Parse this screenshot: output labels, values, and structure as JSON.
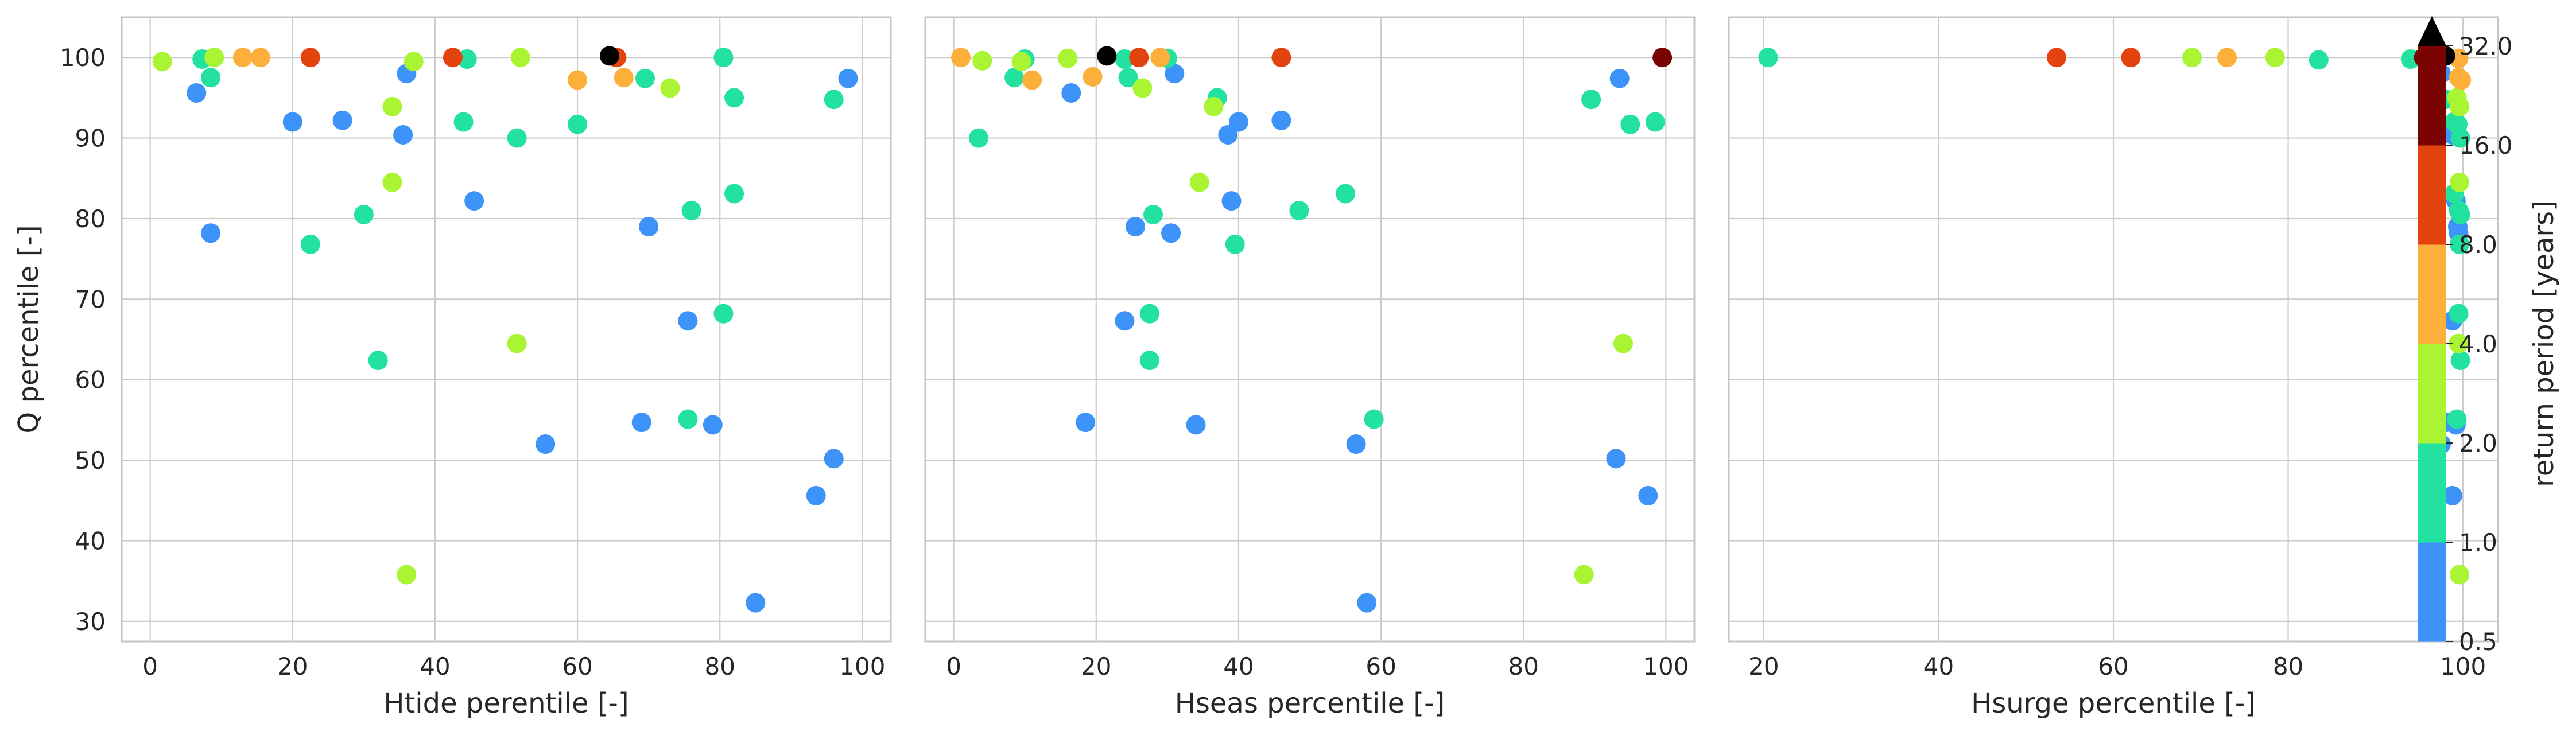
{
  "chart_data": [
    {
      "type": "scatter",
      "xlabel": "Htide perentile [-]",
      "ylabel": "Q percentile [-]",
      "xlim": [
        -4,
        104
      ],
      "ylim": [
        27.5,
        105
      ],
      "xticks": [
        0,
        20,
        40,
        60,
        80,
        100
      ],
      "yticks": [
        30,
        40,
        50,
        60,
        70,
        80,
        90,
        100
      ],
      "grid": true,
      "points": [
        {
          "x": 1.7,
          "y": 99.5,
          "rp": 2.5
        },
        {
          "x": 7.3,
          "y": 99.8,
          "rp": 1.5
        },
        {
          "x": 9.0,
          "y": 100.0,
          "rp": 2.5
        },
        {
          "x": 13.0,
          "y": 100.0,
          "rp": 5.0
        },
        {
          "x": 15.5,
          "y": 100.0,
          "rp": 5.0
        },
        {
          "x": 22.5,
          "y": 100.0,
          "rp": 12.0
        },
        {
          "x": 42.5,
          "y": 100.0,
          "rp": 12.0
        },
        {
          "x": 44.5,
          "y": 99.8,
          "rp": 1.5
        },
        {
          "x": 52.0,
          "y": 100.0,
          "rp": 2.5
        },
        {
          "x": 64.5,
          "y": 100.2,
          "rp": 40.0
        },
        {
          "x": 65.5,
          "y": 100.0,
          "rp": 12.0
        },
        {
          "x": 80.5,
          "y": 100.0,
          "rp": 1.5
        },
        {
          "x": 37.0,
          "y": 99.5,
          "rp": 2.5
        },
        {
          "x": 6.5,
          "y": 95.6,
          "rp": 0.8
        },
        {
          "x": 8.5,
          "y": 97.5,
          "rp": 1.5
        },
        {
          "x": 36.0,
          "y": 98.0,
          "rp": 0.8
        },
        {
          "x": 60.0,
          "y": 97.2,
          "rp": 5.0
        },
        {
          "x": 66.5,
          "y": 97.5,
          "rp": 5.0
        },
        {
          "x": 69.5,
          "y": 97.4,
          "rp": 1.5
        },
        {
          "x": 73.0,
          "y": 96.2,
          "rp": 2.5
        },
        {
          "x": 98.0,
          "y": 97.4,
          "rp": 0.8
        },
        {
          "x": 96.0,
          "y": 94.8,
          "rp": 1.5
        },
        {
          "x": 82.0,
          "y": 95.0,
          "rp": 1.5
        },
        {
          "x": 34.0,
          "y": 93.9,
          "rp": 2.5
        },
        {
          "x": 20.0,
          "y": 92.0,
          "rp": 0.8
        },
        {
          "x": 27.0,
          "y": 92.2,
          "rp": 0.8
        },
        {
          "x": 44.0,
          "y": 92.0,
          "rp": 1.5
        },
        {
          "x": 60.0,
          "y": 91.7,
          "rp": 1.5
        },
        {
          "x": 35.5,
          "y": 90.4,
          "rp": 0.8
        },
        {
          "x": 51.5,
          "y": 90.0,
          "rp": 1.5
        },
        {
          "x": 34.0,
          "y": 84.5,
          "rp": 2.5
        },
        {
          "x": 45.5,
          "y": 82.2,
          "rp": 0.8
        },
        {
          "x": 82.0,
          "y": 83.1,
          "rp": 1.5
        },
        {
          "x": 76.0,
          "y": 81.0,
          "rp": 1.5
        },
        {
          "x": 30.0,
          "y": 80.5,
          "rp": 1.5
        },
        {
          "x": 70.0,
          "y": 79.0,
          "rp": 0.8
        },
        {
          "x": 8.5,
          "y": 78.2,
          "rp": 0.8
        },
        {
          "x": 22.5,
          "y": 76.8,
          "rp": 1.5
        },
        {
          "x": 80.5,
          "y": 68.2,
          "rp": 1.5
        },
        {
          "x": 75.5,
          "y": 67.3,
          "rp": 0.8
        },
        {
          "x": 51.5,
          "y": 64.5,
          "rp": 2.5
        },
        {
          "x": 32.0,
          "y": 62.4,
          "rp": 1.5
        },
        {
          "x": 75.5,
          "y": 55.1,
          "rp": 1.5
        },
        {
          "x": 69.0,
          "y": 54.7,
          "rp": 0.8
        },
        {
          "x": 79.0,
          "y": 54.4,
          "rp": 0.8
        },
        {
          "x": 55.5,
          "y": 52.0,
          "rp": 0.8
        },
        {
          "x": 96.0,
          "y": 50.2,
          "rp": 0.8
        },
        {
          "x": 93.5,
          "y": 45.6,
          "rp": 0.8
        },
        {
          "x": 36.0,
          "y": 35.8,
          "rp": 2.5
        },
        {
          "x": 85.0,
          "y": 32.3,
          "rp": 0.8
        }
      ]
    },
    {
      "type": "scatter",
      "xlabel": "Hseas percentile [-]",
      "ylabel": "",
      "xlim": [
        -4,
        104
      ],
      "ylim": [
        27.5,
        105
      ],
      "xticks": [
        0,
        20,
        40,
        60,
        80,
        100
      ],
      "yticks": [
        30,
        40,
        50,
        60,
        70,
        80,
        90,
        100
      ],
      "grid": true,
      "points": [
        {
          "x": 1.0,
          "y": 100.0,
          "rp": 5.0
        },
        {
          "x": 4.0,
          "y": 99.6,
          "rp": 2.5
        },
        {
          "x": 10.0,
          "y": 99.8,
          "rp": 1.5
        },
        {
          "x": 16.0,
          "y": 99.9,
          "rp": 2.5
        },
        {
          "x": 21.5,
          "y": 100.2,
          "rp": 40.0
        },
        {
          "x": 24.0,
          "y": 99.8,
          "rp": 1.5
        },
        {
          "x": 26.0,
          "y": 100.0,
          "rp": 12.0
        },
        {
          "x": 29.0,
          "y": 100.0,
          "rp": 5.0
        },
        {
          "x": 30.0,
          "y": 99.9,
          "rp": 1.5
        },
        {
          "x": 46.0,
          "y": 100.0,
          "rp": 12.0
        },
        {
          "x": 99.5,
          "y": 100.0,
          "rp": 24.0
        },
        {
          "x": 9.5,
          "y": 99.5,
          "rp": 2.5
        },
        {
          "x": 8.5,
          "y": 97.5,
          "rp": 1.5
        },
        {
          "x": 11.0,
          "y": 97.2,
          "rp": 5.0
        },
        {
          "x": 19.5,
          "y": 97.6,
          "rp": 5.0
        },
        {
          "x": 24.5,
          "y": 97.5,
          "rp": 1.5
        },
        {
          "x": 31.0,
          "y": 98.0,
          "rp": 0.8
        },
        {
          "x": 16.5,
          "y": 95.6,
          "rp": 0.8
        },
        {
          "x": 26.5,
          "y": 96.2,
          "rp": 2.5
        },
        {
          "x": 37.0,
          "y": 95.0,
          "rp": 1.5
        },
        {
          "x": 36.5,
          "y": 93.9,
          "rp": 2.5
        },
        {
          "x": 93.5,
          "y": 97.4,
          "rp": 0.8
        },
        {
          "x": 89.5,
          "y": 94.8,
          "rp": 1.5
        },
        {
          "x": 40.0,
          "y": 92.0,
          "rp": 0.8
        },
        {
          "x": 46.0,
          "y": 92.2,
          "rp": 0.8
        },
        {
          "x": 95.0,
          "y": 91.7,
          "rp": 1.5
        },
        {
          "x": 98.5,
          "y": 92.0,
          "rp": 1.5
        },
        {
          "x": 3.5,
          "y": 90.0,
          "rp": 1.5
        },
        {
          "x": 38.5,
          "y": 90.4,
          "rp": 0.8
        },
        {
          "x": 34.5,
          "y": 84.5,
          "rp": 2.5
        },
        {
          "x": 55.0,
          "y": 83.1,
          "rp": 1.5
        },
        {
          "x": 39.0,
          "y": 82.2,
          "rp": 0.8
        },
        {
          "x": 48.5,
          "y": 81.0,
          "rp": 1.5
        },
        {
          "x": 28.0,
          "y": 80.5,
          "rp": 1.5
        },
        {
          "x": 25.5,
          "y": 79.0,
          "rp": 0.8
        },
        {
          "x": 30.5,
          "y": 78.2,
          "rp": 0.8
        },
        {
          "x": 39.5,
          "y": 76.8,
          "rp": 1.5
        },
        {
          "x": 27.5,
          "y": 68.2,
          "rp": 1.5
        },
        {
          "x": 24.0,
          "y": 67.3,
          "rp": 0.8
        },
        {
          "x": 94.0,
          "y": 64.5,
          "rp": 2.5
        },
        {
          "x": 27.5,
          "y": 62.4,
          "rp": 1.5
        },
        {
          "x": 59.0,
          "y": 55.1,
          "rp": 1.5
        },
        {
          "x": 18.5,
          "y": 54.7,
          "rp": 0.8
        },
        {
          "x": 34.0,
          "y": 54.4,
          "rp": 0.8
        },
        {
          "x": 56.5,
          "y": 52.0,
          "rp": 0.8
        },
        {
          "x": 93.0,
          "y": 50.2,
          "rp": 0.8
        },
        {
          "x": 97.5,
          "y": 45.6,
          "rp": 0.8
        },
        {
          "x": 88.5,
          "y": 35.8,
          "rp": 2.5
        },
        {
          "x": 58.0,
          "y": 32.3,
          "rp": 0.8
        }
      ]
    },
    {
      "type": "scatter",
      "xlabel": "Hsurge percentile [-]",
      "ylabel": "",
      "xlim": [
        16,
        104
      ],
      "ylim": [
        27.5,
        105
      ],
      "xticks": [
        20,
        40,
        60,
        80,
        100
      ],
      "yticks": [
        30,
        40,
        50,
        60,
        70,
        80,
        90,
        100
      ],
      "grid": true,
      "points": [
        {
          "x": 20.5,
          "y": 100.0,
          "rp": 1.5
        },
        {
          "x": 53.5,
          "y": 100.0,
          "rp": 12.0
        },
        {
          "x": 62.0,
          "y": 100.0,
          "rp": 12.0
        },
        {
          "x": 69.0,
          "y": 100.0,
          "rp": 2.5
        },
        {
          "x": 73.0,
          "y": 100.0,
          "rp": 5.0
        },
        {
          "x": 78.5,
          "y": 100.0,
          "rp": 2.5
        },
        {
          "x": 83.5,
          "y": 99.7,
          "rp": 1.5
        },
        {
          "x": 94.0,
          "y": 99.8,
          "rp": 1.5
        },
        {
          "x": 95.5,
          "y": 100.0,
          "rp": 24.0
        },
        {
          "x": 98.0,
          "y": 100.2,
          "rp": 40.0
        },
        {
          "x": 99.5,
          "y": 99.9,
          "rp": 5.0
        },
        {
          "x": 97.5,
          "y": 98.0,
          "rp": 0.8
        },
        {
          "x": 99.5,
          "y": 97.5,
          "rp": 5.0
        },
        {
          "x": 99.8,
          "y": 97.2,
          "rp": 5.0
        },
        {
          "x": 98.0,
          "y": 94.8,
          "rp": 1.5
        },
        {
          "x": 99.3,
          "y": 95.0,
          "rp": 2.5
        },
        {
          "x": 99.6,
          "y": 93.9,
          "rp": 2.5
        },
        {
          "x": 99.0,
          "y": 92.0,
          "rp": 1.5
        },
        {
          "x": 99.4,
          "y": 91.7,
          "rp": 1.5
        },
        {
          "x": 98.8,
          "y": 90.4,
          "rp": 0.8
        },
        {
          "x": 99.7,
          "y": 90.0,
          "rp": 1.5
        },
        {
          "x": 99.6,
          "y": 84.5,
          "rp": 2.5
        },
        {
          "x": 99.0,
          "y": 83.1,
          "rp": 1.5
        },
        {
          "x": 99.2,
          "y": 82.2,
          "rp": 0.8
        },
        {
          "x": 99.5,
          "y": 81.0,
          "rp": 1.5
        },
        {
          "x": 99.7,
          "y": 80.5,
          "rp": 1.5
        },
        {
          "x": 99.4,
          "y": 79.0,
          "rp": 0.8
        },
        {
          "x": 99.5,
          "y": 78.2,
          "rp": 0.8
        },
        {
          "x": 99.6,
          "y": 76.8,
          "rp": 1.5
        },
        {
          "x": 99.5,
          "y": 68.2,
          "rp": 1.5
        },
        {
          "x": 98.8,
          "y": 67.3,
          "rp": 0.8
        },
        {
          "x": 99.5,
          "y": 64.5,
          "rp": 2.5
        },
        {
          "x": 99.7,
          "y": 62.4,
          "rp": 1.5
        },
        {
          "x": 99.3,
          "y": 55.1,
          "rp": 1.5
        },
        {
          "x": 98.0,
          "y": 54.7,
          "rp": 0.8
        },
        {
          "x": 99.2,
          "y": 54.4,
          "rp": 0.8
        },
        {
          "x": 97.5,
          "y": 52.0,
          "rp": 0.8
        },
        {
          "x": 96.5,
          "y": 50.2,
          "rp": 0.8
        },
        {
          "x": 98.8,
          "y": 45.6,
          "rp": 0.8
        },
        {
          "x": 99.6,
          "y": 35.8,
          "rp": 2.5
        },
        {
          "x": 96.5,
          "y": 32.3,
          "rp": 0.8
        }
      ]
    }
  ],
  "colorbar": {
    "label": "return period [years]",
    "ticks": [
      "0.5",
      "1.0",
      "2.0",
      "4.0",
      "8.0",
      "16.0",
      "32.0"
    ],
    "bins": [
      {
        "min": 0.5,
        "max": 1.0,
        "color": "#3d93f7"
      },
      {
        "min": 1.0,
        "max": 2.0,
        "color": "#23e2a0"
      },
      {
        "min": 2.0,
        "max": 4.0,
        "color": "#a9f534"
      },
      {
        "min": 4.0,
        "max": 8.0,
        "color": "#fdaf3b"
      },
      {
        "min": 8.0,
        "max": 16.0,
        "color": "#e3440f"
      },
      {
        "min": 16.0,
        "max": 32.0,
        "color": "#7a0402"
      }
    ],
    "over_color": "#000000"
  },
  "style": {
    "grid_color": "#cccccc",
    "frame_color": "#c4c4c4",
    "text_color": "#262626"
  }
}
